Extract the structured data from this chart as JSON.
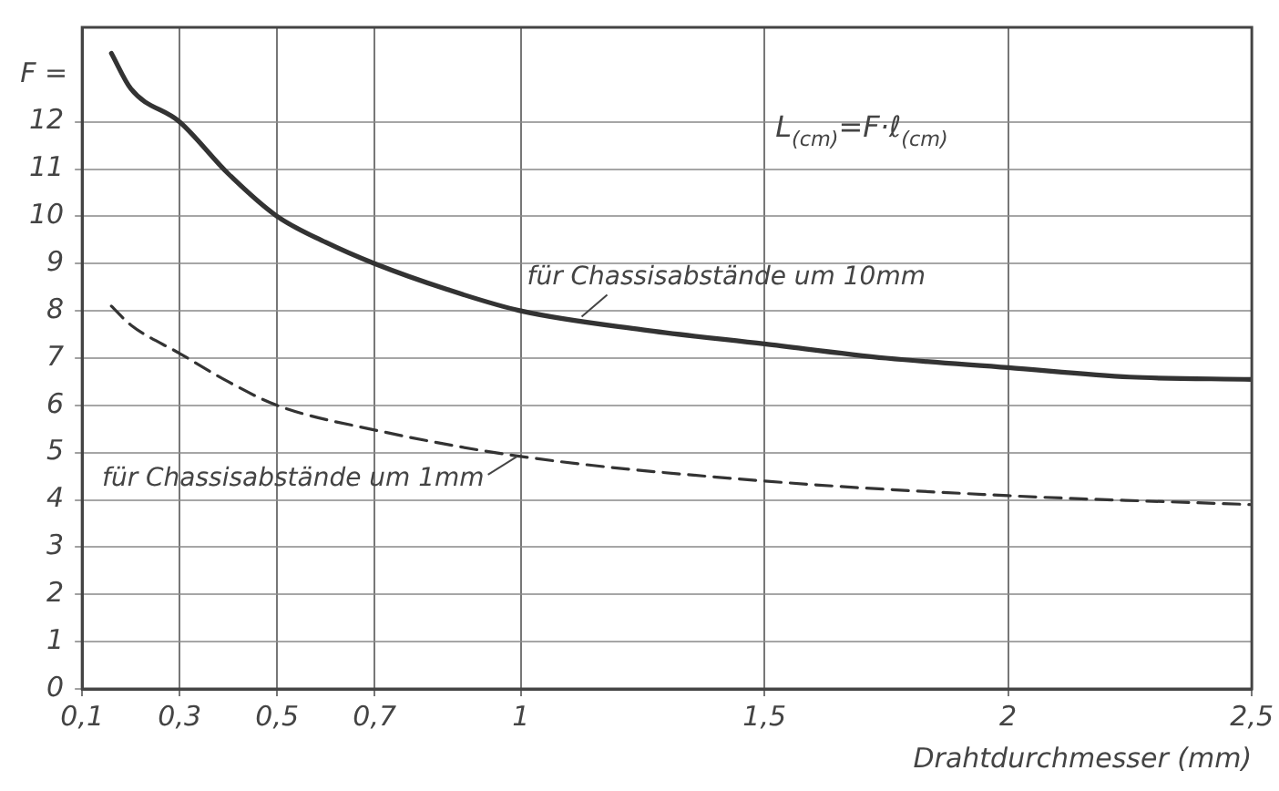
{
  "chart_data": {
    "type": "line",
    "ylabel": "F =",
    "xlabel": "Drahtdurchmesser (mm)",
    "xlim": [
      0.1,
      2.5
    ],
    "ylim": [
      0,
      14
    ],
    "xticks": [
      {
        "value": 0.1,
        "label": "0,1"
      },
      {
        "value": 0.3,
        "label": "0,3"
      },
      {
        "value": 0.5,
        "label": "0,5"
      },
      {
        "value": 0.7,
        "label": "0,7"
      },
      1,
      {
        "value": 1.5,
        "label": "1,5"
      },
      2,
      {
        "value": 2.5,
        "label": "2,5"
      }
    ],
    "yticks": [
      0,
      1,
      2,
      3,
      4,
      5,
      6,
      7,
      8,
      9,
      10,
      11,
      12
    ],
    "grid": true,
    "legend": false,
    "marker": "none",
    "annotations": [
      "L$_{(cm)}$=F·ℓ$_{(cm)}$"
    ],
    "series": [
      {
        "name": "für Chassisabstände um 10mm",
        "color": "#333333",
        "line_style": "solid",
        "x": [
          0.16,
          0.2,
          0.3,
          0.4,
          0.5,
          0.6,
          0.7,
          0.85,
          1,
          1.25,
          1.5,
          1.75,
          2,
          2.25,
          2.5
        ],
        "values": [
          13.45,
          12.7,
          12,
          10.9,
          10,
          9.45,
          9,
          8.45,
          8,
          7.6,
          7.3,
          7,
          6.8,
          6.6,
          6.55
        ]
      },
      {
        "name": "für Chassisabstände um 1mm",
        "color": "#333333",
        "line_style": "dashed",
        "x": [
          0.16,
          0.2,
          0.3,
          0.4,
          0.5,
          0.7,
          1,
          1.5,
          2,
          2.5
        ],
        "values": [
          8.1,
          7.7,
          7.1,
          6.5,
          6,
          5.48,
          4.92,
          4.4,
          4.09,
          3.9
        ]
      }
    ]
  }
}
